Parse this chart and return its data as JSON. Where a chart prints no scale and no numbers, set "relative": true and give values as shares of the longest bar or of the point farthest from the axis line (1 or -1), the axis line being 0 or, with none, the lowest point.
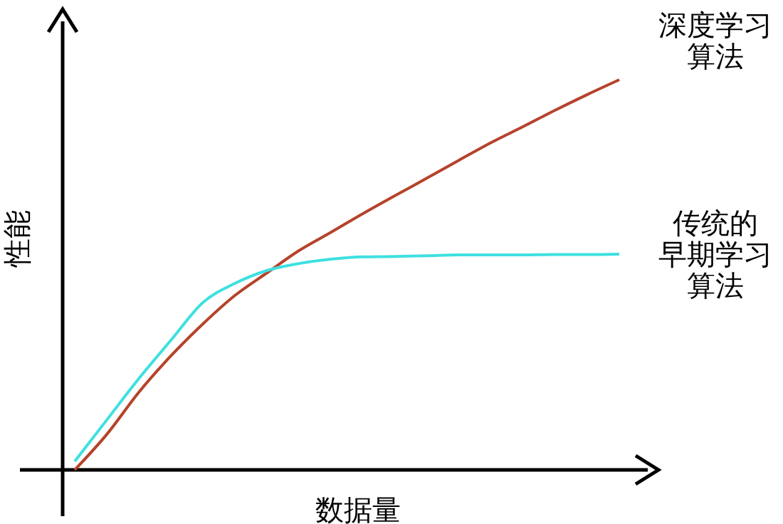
{
  "chart_data": {
    "type": "line",
    "relative": true,
    "xlabel": "数据量",
    "ylabel": "性能",
    "tick_labels": false,
    "marker": "none",
    "line_style": "solid",
    "categories": [
      null,
      null,
      null,
      null,
      null,
      null,
      null,
      null,
      null,
      null,
      null,
      null,
      null,
      null,
      null,
      null,
      null,
      null
    ],
    "series": [
      {
        "name": "深度学习算法",
        "color": "#b5432a",
        "values": [
          0,
          0.091,
          0.199,
          0.292,
          0.374,
          0.447,
          0.505,
          0.562,
          0.609,
          0.657,
          0.703,
          0.748,
          0.794,
          0.839,
          0.88,
          0.922,
          0.962,
          1
        ]
      },
      {
        "name": "传统的早期学习算法",
        "color": "#3ee0e0",
        "values": [
          0.022,
          0.128,
          0.234,
          0.332,
          0.429,
          0.478,
          0.511,
          0.529,
          0.54,
          0.546,
          0.547,
          0.549,
          0.551,
          0.551,
          0.551,
          0.552,
          0.552,
          0.553
        ]
      }
    ]
  }
}
